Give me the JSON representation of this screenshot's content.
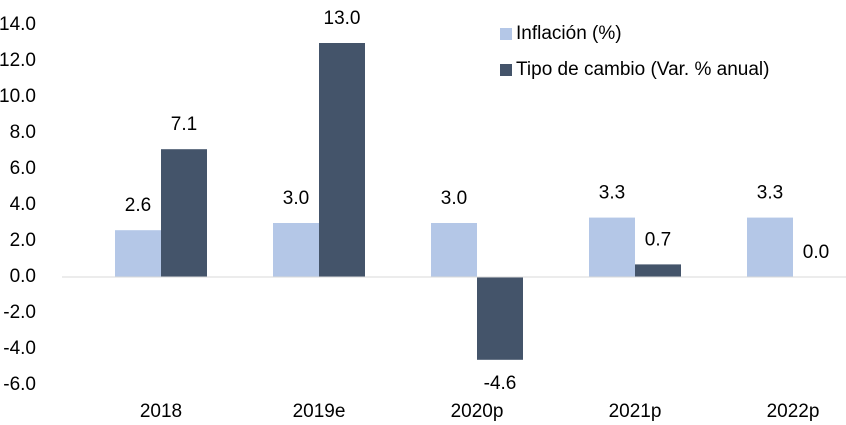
{
  "chart_data": {
    "type": "bar",
    "categories": [
      "2018",
      "2019e",
      "2020p",
      "2021p",
      "2022p"
    ],
    "series": [
      {
        "name": "Inflación (%)",
        "color": "#b4c7e7",
        "values": [
          2.6,
          3.0,
          3.0,
          3.3,
          3.3
        ],
        "value_labels": [
          "2.6",
          "3.0",
          "3.0",
          "3.3",
          "3.3"
        ]
      },
      {
        "name": "Tipo de cambio  (Var. % anual)",
        "color": "#44546a",
        "values": [
          7.1,
          13.0,
          -4.6,
          0.7,
          0.0
        ],
        "value_labels": [
          "7.1",
          "13.0",
          "-4.6",
          "0.7",
          "0.0"
        ]
      }
    ],
    "ylim": [
      -6,
      14
    ],
    "yticks": [
      {
        "value": -6,
        "label": "-6.0"
      },
      {
        "value": -4,
        "label": "-4.0"
      },
      {
        "value": -2,
        "label": "-2.0"
      },
      {
        "value": 0,
        "label": "0.0"
      },
      {
        "value": 2,
        "label": "2.0"
      },
      {
        "value": 4,
        "label": "4.0"
      },
      {
        "value": 6,
        "label": "6.0"
      },
      {
        "value": 8,
        "label": "8.0"
      },
      {
        "value": 10,
        "label": "10.0"
      },
      {
        "value": 12,
        "label": "12.0"
      },
      {
        "value": 14,
        "label": "14.0"
      }
    ],
    "grid": false,
    "legend": "top-right"
  }
}
